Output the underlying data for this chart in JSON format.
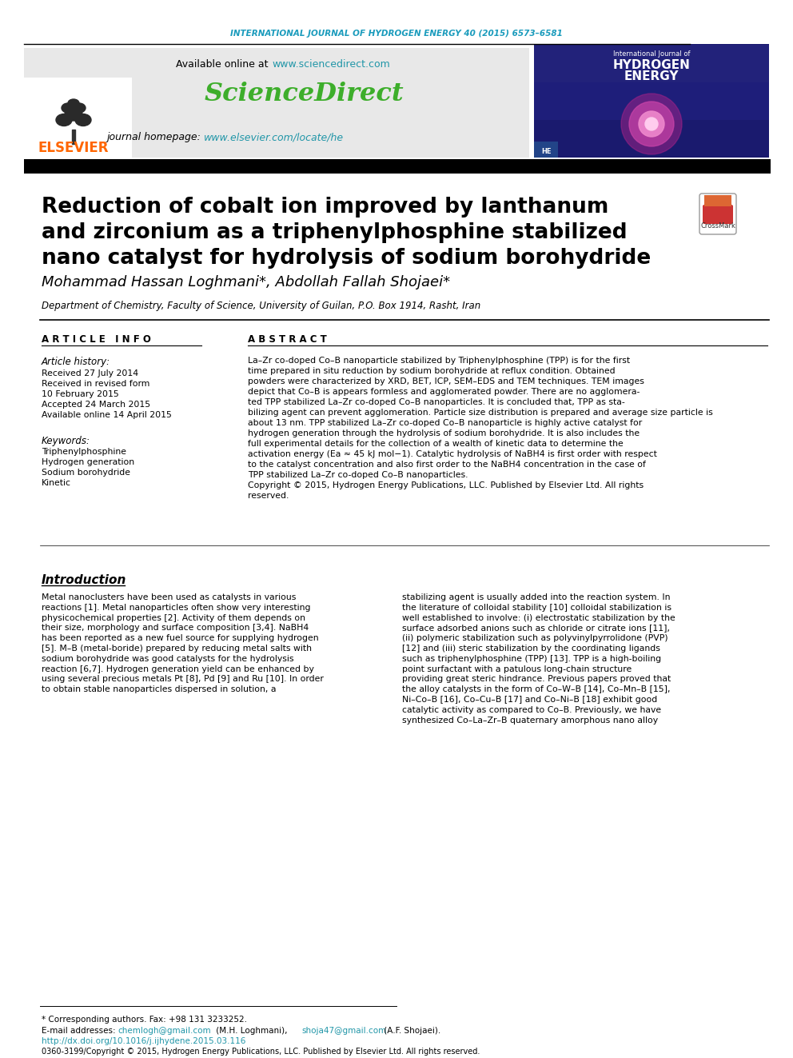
{
  "journal_header": "INTERNATIONAL JOURNAL OF HYDROGEN ENERGY 40 (2015) 6573–6581",
  "journal_header_color": "#1a9bbc",
  "available_online": "Available online at ",
  "sciencedirect_url": "www.sciencedirect.com",
  "sciencedirect_text": "ScienceDirect",
  "sciencedirect_color": "#3dae2b",
  "journal_homepage": "journal homepage: ",
  "elsevier_url": "www.elsevier.com/locate/he",
  "elsevier_text": "ELSEVIER",
  "elsevier_color": "#ff6600",
  "header_bg": "#e8e8e8",
  "title_line1": "Reduction of cobalt ion improved by lanthanum",
  "title_line2": "and zirconium as a triphenylphosphine stabilized",
  "title_line3": "nano catalyst for hydrolysis of sodium borohydride",
  "authors_line": "Mohammad Hassan Loghmani*, Abdollah Fallah Shojaei*",
  "affiliation": "Department of Chemistry, Faculty of Science, University of Guilan, P.O. Box 1914, Rasht, Iran",
  "article_info_label": "A R T I C L E   I N F O",
  "abstract_label": "A B S T R A C T",
  "article_history_label": "Article history:",
  "received1": "Received 27 July 2014",
  "received2": "Received in revised form",
  "received2b": "10 February 2015",
  "accepted": "Accepted 24 March 2015",
  "available": "Available online 14 April 2015",
  "keywords_label": "Keywords:",
  "keyword1": "Triphenylphosphine",
  "keyword2": "Hydrogen generation",
  "keyword3": "Sodium borohydride",
  "keyword4": "Kinetic",
  "abstract_lines": [
    "La–Zr co-doped Co–B nanoparticle stabilized by Triphenylphosphine (TPP) is for the first",
    "time prepared in situ reduction by sodium borohydride at reflux condition. Obtained",
    "powders were characterized by XRD, BET, ICP, SEM–EDS and TEM techniques. TEM images",
    "depict that Co–B is appears formless and agglomerated powder. There are no agglomera-",
    "ted TPP stabilized La–Zr co-doped Co–B nanoparticles. It is concluded that, TPP as sta-",
    "bilizing agent can prevent agglomeration. Particle size distribution is prepared and average size particle is",
    "about 13 nm. TPP stabilized La–Zr co-doped Co–B nanoparticle is highly active catalyst for",
    "hydrogen generation through the hydrolysis of sodium borohydride. It is also includes the",
    "full experimental details for the collection of a wealth of kinetic data to determine the",
    "activation energy (Ea ≈ 45 kJ mol−1). Catalytic hydrolysis of NaBH4 is first order with respect",
    "to the catalyst concentration and also first order to the NaBH4 concentration in the case of",
    "TPP stabilized La–Zr co-doped Co–B nanoparticles.",
    "Copyright © 2015, Hydrogen Energy Publications, LLC. Published by Elsevier Ltd. All rights",
    "reserved."
  ],
  "intro_title": "Introduction",
  "intro_col1_lines": [
    "Metal nanoclusters have been used as catalysts in various",
    "reactions [1]. Metal nanoparticles often show very interesting",
    "physicochemical properties [2]. Activity of them depends on",
    "their size, morphology and surface composition [3,4]. NaBH4",
    "has been reported as a new fuel source for supplying hydrogen",
    "[5]. M–B (metal-boride) prepared by reducing metal salts with",
    "sodium borohydride was good catalysts for the hydrolysis",
    "reaction [6,7]. Hydrogen generation yield can be enhanced by",
    "using several precious metals Pt [8], Pd [9] and Ru [10]. In order",
    "to obtain stable nanoparticles dispersed in solution, a"
  ],
  "intro_col2_lines": [
    "stabilizing agent is usually added into the reaction system. In",
    "the literature of colloidal stability [10] colloidal stabilization is",
    "well established to involve: (i) electrostatic stabilization by the",
    "surface adsorbed anions such as chloride or citrate ions [11],",
    "(ii) polymeric stabilization such as polyvinylpyrrolidone (PVP)",
    "[12] and (iii) steric stabilization by the coordinating ligands",
    "such as triphenylphosphine (TPP) [13]. TPP is a high-boiling",
    "point surfactant with a patulous long-chain structure",
    "providing great steric hindrance. Previous papers proved that",
    "the alloy catalysts in the form of Co–W–B [14], Co–Mn–B [15],",
    "Ni–Co–B [16], Co–Cu–B [17] and Co–Ni–B [18] exhibit good",
    "catalytic activity as compared to Co–B. Previously, we have",
    "synthesized Co–La–Zr–B quaternary amorphous nano alloy"
  ],
  "footer_note": "* Corresponding authors. Fax: +98 131 3233252.",
  "footer_email_prefix": "E-mail addresses: ",
  "footer_email1_link": "chemlogh@gmail.com",
  "footer_email1_suffix": " (M.H. Loghmani), ",
  "footer_email2_link": "shoja47@gmail.com",
  "footer_email2_suffix": " (A.F. Shojaei).",
  "footer_doi": "http://dx.doi.org/10.1016/j.ijhydene.2015.03.116",
  "footer_copyright": "0360-3199/Copyright © 2015, Hydrogen Energy Publications, LLC. Published by Elsevier Ltd. All rights reserved.",
  "bg_color": "#ffffff",
  "text_color": "#000000",
  "link_color": "#2196a8"
}
